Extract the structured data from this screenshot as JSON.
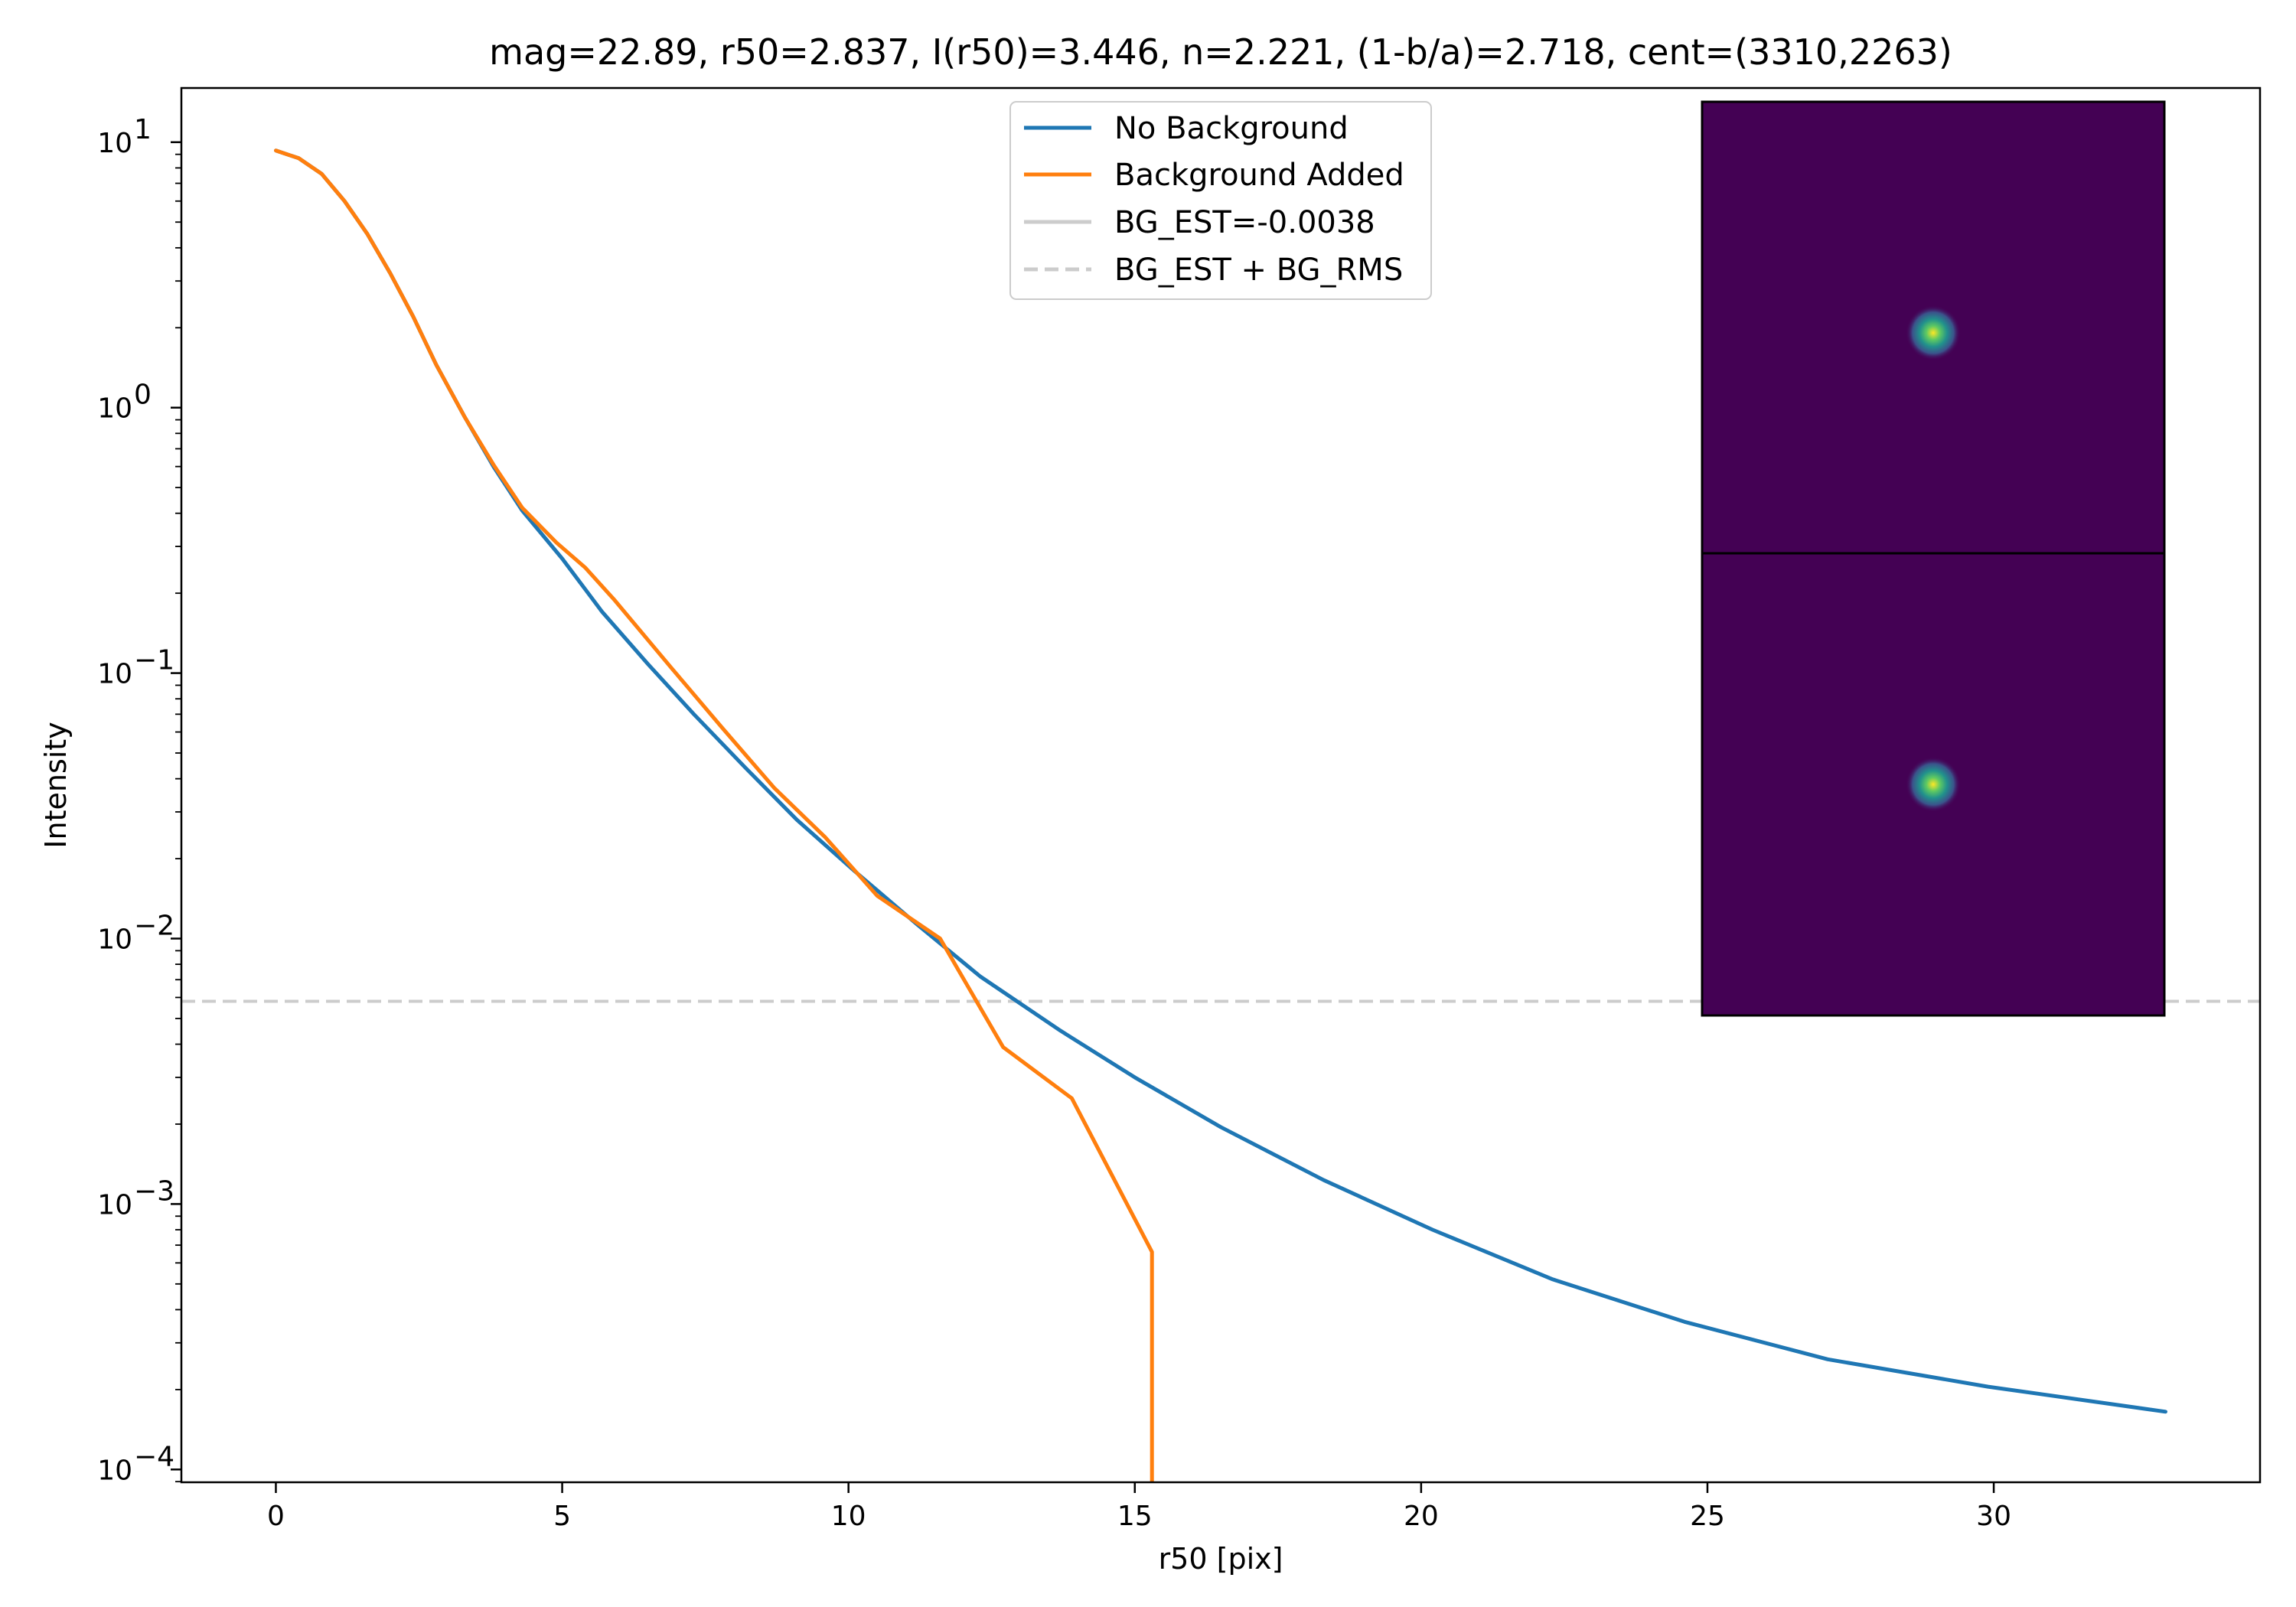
{
  "chart_data": {
    "type": "line",
    "title": "mag=22.89, r50=2.837, I(r50)=3.446, n=2.221, (1-b/a)=2.718, cent=(3310,2263)",
    "xlabel": "r50 [pix]",
    "ylabel": "Intensity",
    "xlim": [
      -1.65,
      34.65
    ],
    "ylim": [
      8.95e-05,
      16
    ],
    "yscale": "log",
    "x_ticks": [
      0,
      5,
      10,
      15,
      20,
      25,
      30
    ],
    "y_ticks": [
      {
        "value": 10,
        "base": "10",
        "exp": "1"
      },
      {
        "value": 1,
        "base": "10",
        "exp": "0"
      },
      {
        "value": 0.1,
        "base": "10",
        "exp": "−1"
      },
      {
        "value": 0.01,
        "base": "10",
        "exp": "−2"
      },
      {
        "value": 0.001,
        "base": "10",
        "exp": "−3"
      },
      {
        "value": 0.0001,
        "base": "10",
        "exp": "−4"
      }
    ],
    "grid": false,
    "legend_position": "top-center",
    "series": [
      {
        "name": "No Background",
        "color": "#1f77b4",
        "x": [
          0,
          0.4,
          0.8,
          1.2,
          1.6,
          2.0,
          2.4,
          2.8,
          3.3,
          3.8,
          4.3,
          5.0,
          5.7,
          6.5,
          7.3,
          8.2,
          9.1,
          10.1,
          11.2,
          12.3,
          13.7,
          15.0,
          16.5,
          18.3,
          20.2,
          22.3,
          24.6,
          27.1,
          29.9,
          33.0
        ],
        "values": [
          9.3,
          8.7,
          7.6,
          6.0,
          4.5,
          3.2,
          2.2,
          1.45,
          0.92,
          0.6,
          0.41,
          0.27,
          0.17,
          0.108,
          0.07,
          0.044,
          0.028,
          0.018,
          0.0113,
          0.0072,
          0.0045,
          0.003,
          0.00195,
          0.00123,
          0.0008,
          0.00052,
          0.00036,
          0.00026,
          0.000205,
          0.000165
        ]
      },
      {
        "name": "Background Added",
        "color": "#ff7f0e",
        "x": [
          0,
          0.4,
          0.8,
          1.2,
          1.6,
          2.0,
          2.4,
          2.8,
          3.3,
          3.8,
          4.3,
          4.9,
          5.4,
          5.9,
          6.9,
          7.8,
          8.7,
          9.6,
          10.5,
          11.6,
          12.7,
          13.9,
          15.3,
          15.3
        ],
        "values": [
          9.3,
          8.7,
          7.6,
          6.0,
          4.5,
          3.2,
          2.2,
          1.45,
          0.92,
          0.61,
          0.42,
          0.31,
          0.25,
          0.19,
          0.105,
          0.062,
          0.037,
          0.024,
          0.0145,
          0.01,
          0.0039,
          0.0025,
          0.00066,
          8.95e-05
        ]
      }
    ],
    "reference_lines": [
      {
        "name": "BG_EST=-0.0038",
        "y": -0.0038,
        "style": "solid",
        "color": "#cccccc"
      },
      {
        "name": "BG_EST + BG_RMS",
        "y": 0.0058,
        "style": "dashed",
        "color": "#cccccc"
      }
    ],
    "inset_images": [
      "source-cutout",
      "model-cutout"
    ]
  },
  "colors": {
    "inset_background": "#440154",
    "inset_glow_inner": "#fde725",
    "inset_glow_mid": "#35b779",
    "inset_glow_outer": "#31688e"
  }
}
